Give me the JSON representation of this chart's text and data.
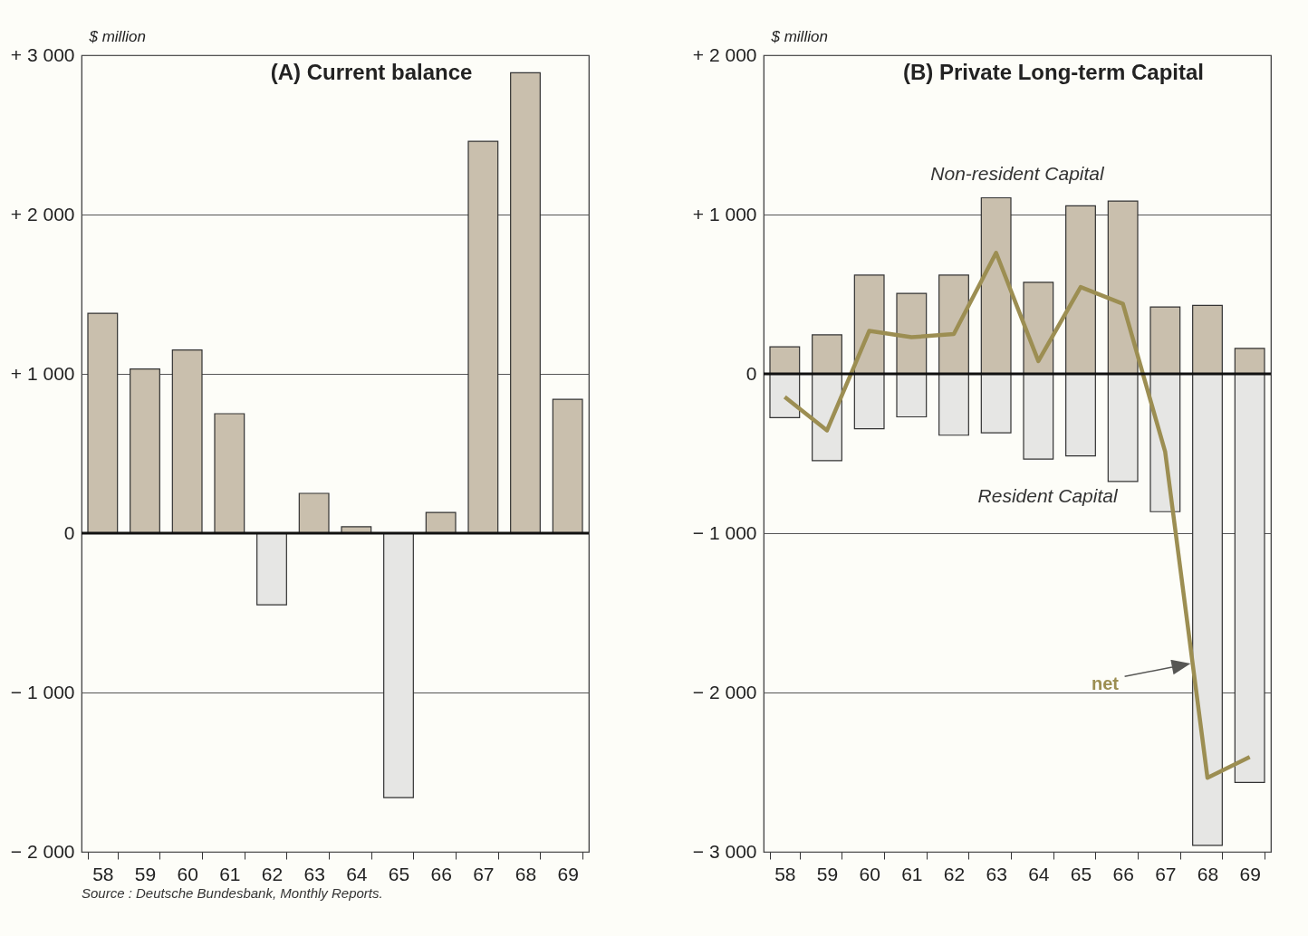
{
  "chart_data": [
    {
      "type": "bar",
      "title": "(A)  Current balance",
      "ylabel": "$ million",
      "categories": [
        "58",
        "59",
        "60",
        "61",
        "62",
        "63",
        "64",
        "65",
        "66",
        "67",
        "68",
        "69"
      ],
      "values": [
        1380,
        1030,
        1150,
        750,
        -450,
        250,
        40,
        -1660,
        130,
        2460,
        2890,
        840
      ],
      "colors": [
        "#c9bfad",
        "#c9bfad",
        "#c9bfad",
        "#c9bfad",
        "#e6e6e4",
        "#c9bfad",
        "#c9bfad",
        "#e6e6e4",
        "#c9bfad",
        "#c9bfad",
        "#c9bfad",
        "#c9bfad"
      ],
      "ylim": [
        -2000,
        3000
      ],
      "yticks": [
        {
          "value": -2000,
          "label": "− 2 000"
        },
        {
          "value": -1000,
          "label": "− 1 000"
        },
        0,
        {
          "value": 1000,
          "label": "+ 1 000"
        },
        {
          "value": 2000,
          "label": "+ 2 000"
        },
        {
          "value": 3000,
          "label": "+ 3 000"
        }
      ],
      "grid": "y",
      "ref_lines": [
        {
          "axis": "y",
          "value": 0,
          "color": "#111111"
        }
      ],
      "annotations": [
        "Source : Deutsche Bundesbank, Monthly Reports."
      ]
    },
    {
      "type": "bar",
      "title": "(B)  Private Long-term Capital",
      "ylabel": "$ million",
      "categories": [
        "58",
        "59",
        "60",
        "61",
        "62",
        "63",
        "64",
        "65",
        "66",
        "67",
        "68",
        "69"
      ],
      "stacked": true,
      "series": [
        {
          "name": "Non-resident Capital",
          "color": "#c9bfad",
          "values": [
            170,
            245,
            620,
            505,
            620,
            1105,
            575,
            1055,
            1085,
            420,
            430,
            160
          ]
        },
        {
          "name": "Resident Capital",
          "color": "#e6e6e4",
          "values": [
            -275,
            -545,
            -345,
            -270,
            -385,
            -370,
            -535,
            -515,
            -675,
            -865,
            -2960,
            -2565
          ]
        },
        {
          "name": "net",
          "type": "line",
          "color": "#9c8e52",
          "values": [
            -145,
            -355,
            270,
            230,
            250,
            760,
            80,
            545,
            440,
            -490,
            -2535,
            -2405
          ]
        }
      ],
      "ylim": [
        -3000,
        2000
      ],
      "yticks": [
        {
          "value": -3000,
          "label": "− 3 000"
        },
        {
          "value": -2000,
          "label": "− 2 000"
        },
        {
          "value": -1000,
          "label": "− 1 000"
        },
        0,
        {
          "value": 1000,
          "label": "+ 1 000"
        },
        {
          "value": 2000,
          "label": "+ 2 000"
        }
      ],
      "grid": "y",
      "ref_lines": [
        {
          "axis": "y",
          "value": 0,
          "color": "#111111"
        }
      ]
    }
  ]
}
